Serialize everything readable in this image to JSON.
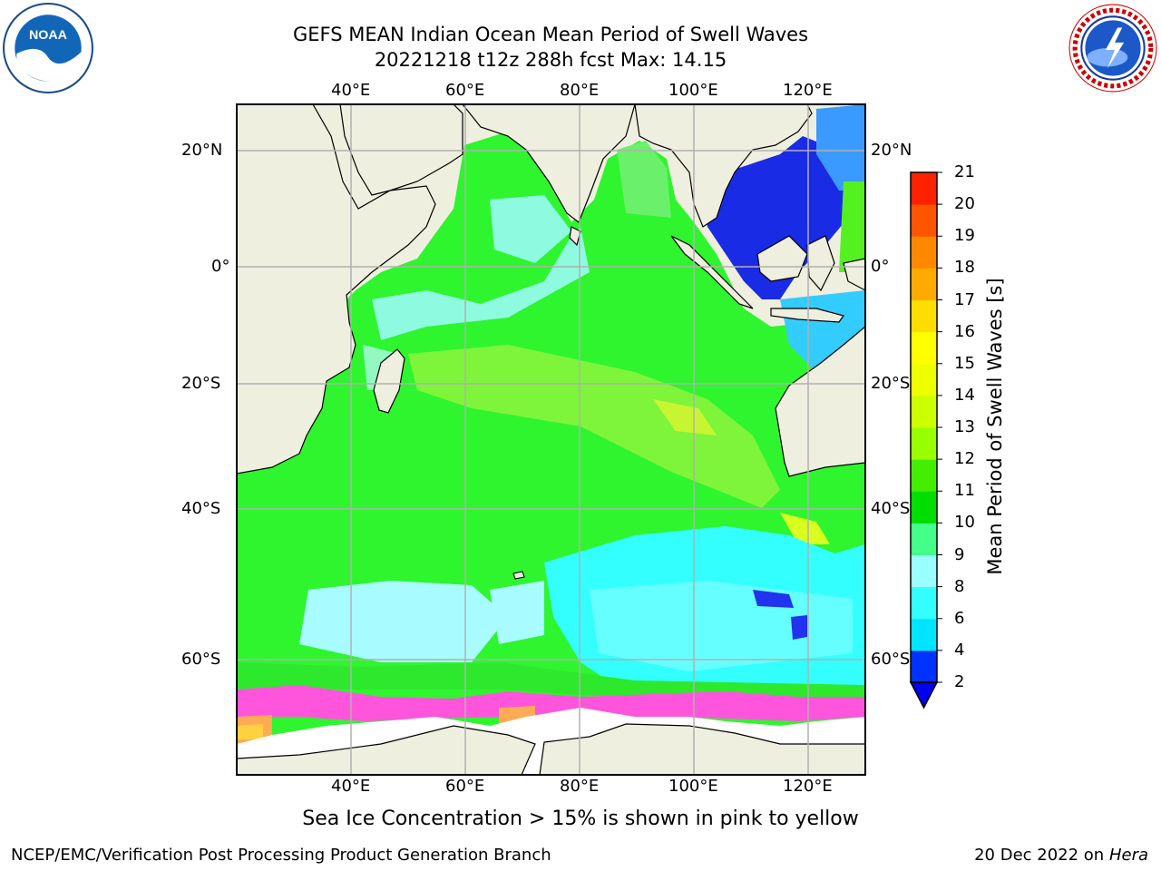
{
  "title": {
    "line1": "GEFS MEAN Indian Ocean Mean Period of Swell Waves",
    "line2": "20221218 t12z 288h fcst   Max: 14.15"
  },
  "map": {
    "lon_labels": [
      "40°E",
      "60°E",
      "80°E",
      "100°E",
      "120°E"
    ],
    "lat_labels": [
      "20°N",
      "0°",
      "20°S",
      "40°S",
      "60°S"
    ],
    "extent": {
      "lon": [
        20,
        130
      ],
      "lat": [
        -72,
        28
      ]
    }
  },
  "colorbar": {
    "label": "Mean Period of Swell Waves [s]",
    "ticks": [
      "2",
      "4",
      "6",
      "8",
      "9",
      "10",
      "11",
      "12",
      "13",
      "14",
      "15",
      "16",
      "17",
      "18",
      "19",
      "20",
      "21"
    ],
    "colors": [
      "#0033ff",
      "#00e5ff",
      "#33ffff",
      "#99ffff",
      "#44ff88",
      "#00dd00",
      "#44ee00",
      "#99ff00",
      "#ccff00",
      "#eeff00",
      "#ffff00",
      "#ffdd00",
      "#ffaa00",
      "#ff8800",
      "#ff5500",
      "#ff2200"
    ]
  },
  "footnote": "Sea Ice Concentration > 15% is shown in pink to yellow",
  "credit_left": "NCEP/EMC/Verification Post Processing Product Generation Branch",
  "credit_right_date": "20 Dec 2022 on",
  "credit_right_host": "Hera",
  "logos": {
    "left": "NOAA",
    "right": "NATIONAL WEATHER SERVICE"
  }
}
